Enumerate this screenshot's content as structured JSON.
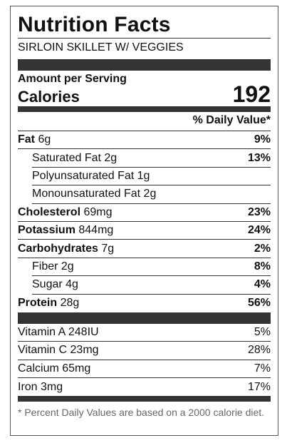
{
  "label": {
    "title": "Nutrition Facts",
    "recipe": "SIRLOIN SKILLET W/ VEGGIES",
    "amount_per_serving": "Amount per Serving",
    "calories_label": "Calories",
    "calories_value": "192",
    "daily_value_header": "% Daily Value*",
    "nutrients": [
      {
        "name": "Fat",
        "amount": "6g",
        "dv": "9%"
      },
      {
        "name": "Saturated Fat",
        "amount": "2g",
        "dv": "13%"
      },
      {
        "name": "Polyunsaturated Fat",
        "amount": "1g",
        "dv": ""
      },
      {
        "name": "Monounsaturated Fat",
        "amount": "2g",
        "dv": ""
      },
      {
        "name": "Cholesterol",
        "amount": "69mg",
        "dv": "23%"
      },
      {
        "name": "Potassium",
        "amount": "844mg",
        "dv": "24%"
      },
      {
        "name": "Carbohydrates",
        "amount": "7g",
        "dv": "2%"
      },
      {
        "name": "Fiber",
        "amount": "2g",
        "dv": "8%"
      },
      {
        "name": "Sugar",
        "amount": "4g",
        "dv": "4%"
      },
      {
        "name": "Protein",
        "amount": "28g",
        "dv": "56%"
      }
    ],
    "vitamins": [
      {
        "name": "Vitamin A",
        "amount": "248IU",
        "dv": "5%"
      },
      {
        "name": "Vitamin C",
        "amount": "23mg",
        "dv": "28%"
      },
      {
        "name": "Calcium",
        "amount": "65mg",
        "dv": "7%"
      },
      {
        "name": "Iron",
        "amount": "3mg",
        "dv": "17%"
      }
    ],
    "footnote": "* Percent Daily Values are based on a 2000 calorie diet."
  }
}
